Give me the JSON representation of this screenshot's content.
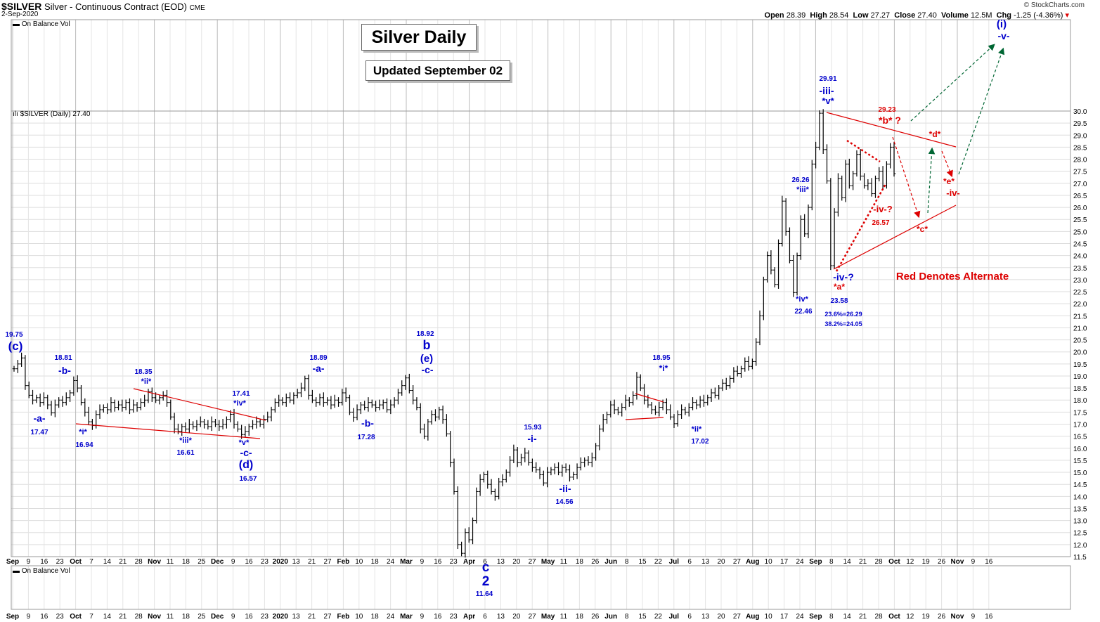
{
  "header": {
    "symbol": "$SILVER",
    "description": "Silver - Continuous Contract (EOD)",
    "exchange": "CME",
    "date": "2-Sep-2020",
    "open_label": "Open",
    "open": "28.39",
    "high_label": "High",
    "high": "28.54",
    "low_label": "Low",
    "low": "27.27",
    "close_label": "Close",
    "close": "27.40",
    "volume_label": "Volume",
    "volume": "12.5M",
    "chg_label": "Chg",
    "chg": "-1.25 (-4.36%)",
    "copyright": "© StockCharts.com"
  },
  "indicator_top": "On Balance Vol",
  "indicator_bottom": "On Balance Vol",
  "price_label": "$SILVER (Daily) 27.40",
  "title_box": "Silver Daily",
  "updated_box": "Updated September 02",
  "alternate_note": "Red Denotes Alternate",
  "colors": {
    "blue": "#0000cc",
    "red": "#dd0000",
    "green": "#006633",
    "bar": "#000000",
    "grid": "#dddddd",
    "trend": "#dd0000"
  },
  "chart_data": {
    "type": "ohlc",
    "ylim": [
      11.5,
      30.0
    ],
    "y_ticks": [
      "11.5",
      "12.0",
      "12.5",
      "13.0",
      "13.5",
      "14.0",
      "14.5",
      "15.0",
      "15.5",
      "16.0",
      "16.5",
      "17.0",
      "17.5",
      "18.0",
      "18.5",
      "19.0",
      "19.5",
      "20.0",
      "20.5",
      "21.0",
      "21.5",
      "22.0",
      "22.5",
      "23.0",
      "23.5",
      "24.0",
      "24.5",
      "25.0",
      "25.5",
      "26.0",
      "26.5",
      "27.0",
      "27.5",
      "28.0",
      "28.5",
      "29.0",
      "29.5",
      "30.0"
    ],
    "x_ticks": [
      "Sep",
      "9",
      "16",
      "23",
      "Oct",
      "7",
      "14",
      "21",
      "28",
      "Nov",
      "11",
      "18",
      "25",
      "Dec",
      "9",
      "16",
      "23",
      "2020",
      "13",
      "21",
      "27",
      "Feb",
      "10",
      "18",
      "24",
      "Mar",
      "9",
      "16",
      "23",
      "Apr",
      "6",
      "13",
      "20",
      "27",
      "May",
      "11",
      "18",
      "26",
      "Jun",
      "8",
      "15",
      "22",
      "Jul",
      "6",
      "13",
      "20",
      "27",
      "Aug",
      "10",
      "17",
      "24",
      "Sep",
      "8",
      "14",
      "21",
      "28",
      "Oct",
      "12",
      "19",
      "26",
      "Nov",
      "9",
      "16"
    ],
    "month_ticks": [
      "Sep",
      "Oct",
      "Nov",
      "Dec",
      "2020",
      "Feb",
      "Mar",
      "Apr",
      "May",
      "Jun",
      "Jul",
      "Aug",
      "Sep",
      "Oct",
      "Nov"
    ],
    "series_closes": [
      19.3,
      19.5,
      19.75,
      18.6,
      18.2,
      18.0,
      18.1,
      17.9,
      18.1,
      17.8,
      17.47,
      17.8,
      18.0,
      17.9,
      18.1,
      18.3,
      18.81,
      18.5,
      17.9,
      17.5,
      17.1,
      16.94,
      17.4,
      17.6,
      17.7,
      17.6,
      17.9,
      17.7,
      17.8,
      17.7,
      17.9,
      17.6,
      17.8,
      17.7,
      17.9,
      18.0,
      18.35,
      18.1,
      18.0,
      18.1,
      18.2,
      17.9,
      17.3,
      16.8,
      16.7,
      16.9,
      16.8,
      17.0,
      16.9,
      17.0,
      17.1,
      17.0,
      16.9,
      17.1,
      17.0,
      16.9,
      17.0,
      17.2,
      17.41,
      17.0,
      16.8,
      16.57,
      16.7,
      16.9,
      17.0,
      17.1,
      17.0,
      17.2,
      17.3,
      17.6,
      17.9,
      18.0,
      17.9,
      18.1,
      18.0,
      18.2,
      18.3,
      18.5,
      18.89,
      18.2,
      18.0,
      17.9,
      18.1,
      17.9,
      18.0,
      17.8,
      18.0,
      17.9,
      18.3,
      18.1,
      17.5,
      17.28,
      17.6,
      17.8,
      17.7,
      17.9,
      17.8,
      17.7,
      17.8,
      17.9,
      17.6,
      17.8,
      18.0,
      18.3,
      18.6,
      18.92,
      18.4,
      18.0,
      17.7,
      16.8,
      16.5,
      17.1,
      17.4,
      17.3,
      17.6,
      17.2,
      16.6,
      15.4,
      14.2,
      12.0,
      11.64,
      12.5,
      12.2,
      13.0,
      14.2,
      14.7,
      14.9,
      14.5,
      14.2,
      14.0,
      14.6,
      14.7,
      15.0,
      15.5,
      15.93,
      15.4,
      15.6,
      15.8,
      15.4,
      15.2,
      15.1,
      14.9,
      14.56,
      15.0,
      15.1,
      15.2,
      15.0,
      15.2,
      15.1,
      14.8,
      14.9,
      15.2,
      15.4,
      15.5,
      15.4,
      15.6,
      16.1,
      16.8,
      17.2,
      17.4,
      17.8,
      17.6,
      17.5,
      17.7,
      18.0,
      17.9,
      18.2,
      18.95,
      18.5,
      18.0,
      17.8,
      17.6,
      17.5,
      17.7,
      17.9,
      17.6,
      17.3,
      17.02,
      17.4,
      17.6,
      17.5,
      17.7,
      17.9,
      17.8,
      18.0,
      17.9,
      18.1,
      18.3,
      18.2,
      18.5,
      18.7,
      18.6,
      18.9,
      19.2,
      19.1,
      19.3,
      19.6,
      19.4,
      19.6,
      20.4,
      21.5,
      23.0,
      24.0,
      23.4,
      22.8,
      24.5,
      26.26,
      25.0,
      23.8,
      22.46,
      24.0,
      25.5,
      24.9,
      26.0,
      27.8,
      28.5,
      29.91,
      28.4,
      27.1,
      23.58,
      25.8,
      27.2,
      26.4,
      27.8,
      26.9,
      27.4,
      28.2,
      27.3,
      26.9,
      27.0,
      26.57,
      27.2,
      27.5,
      26.9,
      27.8,
      28.5,
      27.4
    ],
    "trendlines": [
      {
        "color": "red",
        "from": [
          "Sep-26",
          16.94
        ],
        "to": [
          "Dec-11",
          16.4
        ]
      },
      {
        "color": "red",
        "from": [
          "Oct-25",
          18.35
        ],
        "to": [
          "Dec-13",
          17.1
        ]
      },
      {
        "color": "red",
        "from": [
          "May-13",
          18.2
        ],
        "to": [
          "May-26",
          17.9
        ]
      },
      {
        "color": "red",
        "from": [
          "May-13",
          17.2
        ],
        "to": [
          "May-27",
          17.3
        ]
      },
      {
        "color": "red",
        "from": [
          "Aug-07",
          29.91
        ],
        "to": [
          "Sep-26",
          28.6
        ]
      },
      {
        "color": "red",
        "from": [
          "Aug-11",
          23.5
        ],
        "to": [
          "Sep-26",
          26.1
        ]
      }
    ],
    "wave_labels": [
      {
        "text": "19.75",
        "value": 19.75,
        "color": "blue"
      },
      {
        "text": "(c)",
        "color": "blue"
      },
      {
        "text": "-a-",
        "color": "blue"
      },
      {
        "text": "17.47",
        "value": 17.47,
        "color": "blue"
      },
      {
        "text": "18.81",
        "value": 18.81,
        "color": "blue"
      },
      {
        "text": "-b-",
        "color": "blue"
      },
      {
        "text": "*i*",
        "color": "blue"
      },
      {
        "text": "16.94",
        "value": 16.94,
        "color": "blue"
      },
      {
        "text": "18.35",
        "value": 18.35,
        "color": "blue"
      },
      {
        "text": "*ii*",
        "color": "blue"
      },
      {
        "text": "*iii*",
        "color": "blue"
      },
      {
        "text": "16.61",
        "value": 16.61,
        "color": "blue"
      },
      {
        "text": "17.41",
        "value": 17.41,
        "color": "blue"
      },
      {
        "text": "*iv*",
        "color": "blue"
      },
      {
        "text": "*v*",
        "color": "blue"
      },
      {
        "text": "-c-",
        "color": "blue"
      },
      {
        "text": "(d)",
        "color": "blue"
      },
      {
        "text": "16.57",
        "value": 16.57,
        "color": "blue"
      },
      {
        "text": "18.89",
        "value": 18.89,
        "color": "blue"
      },
      {
        "text": "-a-",
        "color": "blue"
      },
      {
        "text": "-b-",
        "color": "blue"
      },
      {
        "text": "17.28",
        "value": 17.28,
        "color": "blue"
      },
      {
        "text": "18.92",
        "value": 18.92,
        "color": "blue"
      },
      {
        "text": "b",
        "color": "blue"
      },
      {
        "text": "(e)",
        "color": "blue"
      },
      {
        "text": "-c-",
        "color": "blue"
      },
      {
        "text": "c",
        "color": "blue"
      },
      {
        "text": "2",
        "color": "blue"
      },
      {
        "text": "11.64",
        "value": 11.64,
        "color": "blue"
      },
      {
        "text": "15.93",
        "value": 15.93,
        "color": "blue"
      },
      {
        "text": "-i-",
        "color": "blue"
      },
      {
        "text": "-ii-",
        "color": "blue"
      },
      {
        "text": "14.56",
        "value": 14.56,
        "color": "blue"
      },
      {
        "text": "18.95",
        "value": 18.95,
        "color": "blue"
      },
      {
        "text": "*i*",
        "color": "blue"
      },
      {
        "text": "*ii*",
        "color": "blue"
      },
      {
        "text": "17.02",
        "value": 17.02,
        "color": "blue"
      },
      {
        "text": "26.26",
        "value": 26.26,
        "color": "blue"
      },
      {
        "text": "*iii*",
        "color": "blue"
      },
      {
        "text": "*iv*",
        "color": "blue"
      },
      {
        "text": "22.46",
        "value": 22.46,
        "color": "blue"
      },
      {
        "text": "29.91",
        "value": 29.91,
        "color": "blue"
      },
      {
        "text": "-iii-",
        "color": "blue"
      },
      {
        "text": "*v*",
        "color": "blue"
      },
      {
        "text": "-iv-?",
        "color": "blue"
      },
      {
        "text": "*a*",
        "color": "red"
      },
      {
        "text": "23.58",
        "value": 23.58,
        "color": "blue"
      },
      {
        "text": "23.6%=26.29",
        "color": "blue"
      },
      {
        "text": "38.2%=24.05",
        "color": "blue"
      },
      {
        "text": "29.23",
        "value": 29.23,
        "color": "red"
      },
      {
        "text": "*b* ?",
        "color": "red"
      },
      {
        "text": "-iv-?",
        "color": "red"
      },
      {
        "text": "26.57",
        "value": 26.57,
        "color": "red"
      },
      {
        "text": "*c*",
        "color": "red"
      },
      {
        "text": "*d*",
        "color": "red"
      },
      {
        "text": "*e*",
        "color": "red"
      },
      {
        "text": "-iv-",
        "color": "red"
      },
      {
        "text": "(i)",
        "color": "blue"
      },
      {
        "text": "-v-",
        "color": "blue"
      }
    ]
  }
}
